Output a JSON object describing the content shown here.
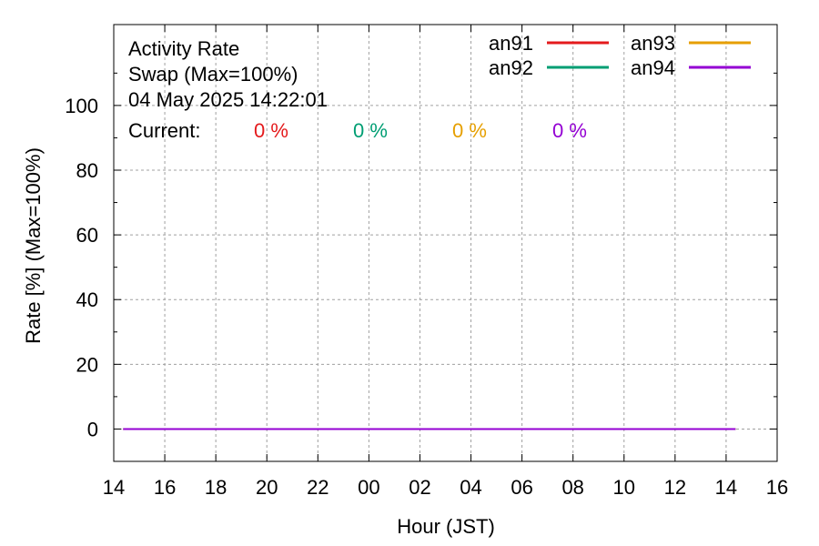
{
  "chart_data": {
    "type": "line",
    "title_lines": [
      "Activity Rate",
      "Swap (Max=100%)",
      "04 May 2025 14:22:01"
    ],
    "current_label": "Current:",
    "xlabel": "Hour (JST)",
    "ylabel": "Rate [%]  (Max=100%)",
    "xlim": [
      14,
      40
    ],
    "ylim": [
      -10,
      125
    ],
    "x_ticks": [
      {
        "v": 14,
        "label": "14"
      },
      {
        "v": 16,
        "label": "16"
      },
      {
        "v": 18,
        "label": "18"
      },
      {
        "v": 20,
        "label": "20"
      },
      {
        "v": 22,
        "label": "22"
      },
      {
        "v": 24,
        "label": "00"
      },
      {
        "v": 26,
        "label": "02"
      },
      {
        "v": 28,
        "label": "04"
      },
      {
        "v": 30,
        "label": "06"
      },
      {
        "v": 32,
        "label": "08"
      },
      {
        "v": 34,
        "label": "10"
      },
      {
        "v": 36,
        "label": "12"
      },
      {
        "v": 38,
        "label": "14"
      },
      {
        "v": 40,
        "label": "16"
      }
    ],
    "y_ticks": [
      {
        "v": 0,
        "label": "0"
      },
      {
        "v": 20,
        "label": "20"
      },
      {
        "v": 40,
        "label": "40"
      },
      {
        "v": 60,
        "label": "60"
      },
      {
        "v": 80,
        "label": "80"
      },
      {
        "v": 100,
        "label": "100"
      }
    ],
    "grid": true,
    "legend_position": "top-right",
    "series": [
      {
        "name": "an91",
        "color": "#e41a1c",
        "current": "0 %",
        "x": [
          14.37,
          38.37
        ],
        "y": [
          0,
          0
        ]
      },
      {
        "name": "an92",
        "color": "#009e73",
        "current": "0 %",
        "x": [
          14.37,
          38.37
        ],
        "y": [
          0,
          0
        ]
      },
      {
        "name": "an93",
        "color": "#e69f00",
        "current": "0 %",
        "x": [
          14.37,
          38.37
        ],
        "y": [
          0,
          0
        ]
      },
      {
        "name": "an94",
        "color": "#9400d3",
        "current": "0 %",
        "x": [
          14.37,
          38.37
        ],
        "y": [
          0,
          0
        ]
      }
    ]
  }
}
